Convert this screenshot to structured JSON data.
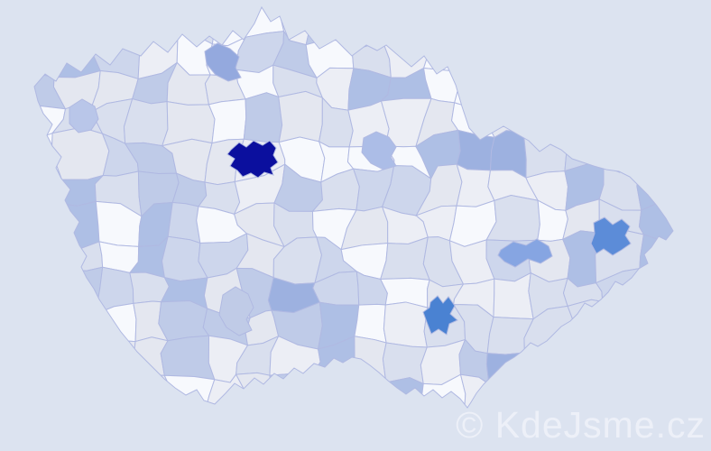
{
  "map": {
    "background": "#dce3f0",
    "region_border_color": "#b0b9e2",
    "palette": [
      "#f7f9fd",
      "#eceef5",
      "#e4e7f0",
      "#d9dfee",
      "#cdd6ec",
      "#bfcbe8",
      "#aebfe5",
      "#9db1e0"
    ],
    "palette_weights": [
      0.16,
      0.34,
      0.52,
      0.68,
      0.8,
      0.9,
      0.965,
      1.0
    ],
    "highlights": [
      {
        "id": "praha",
        "color": "#0b0f9e"
      },
      {
        "id": "brno",
        "color": "#4a82d2"
      },
      {
        "id": "ostrava",
        "color": "#5c8cd8"
      },
      {
        "id": "olomouc",
        "color": "#86a5e2"
      },
      {
        "id": "mlada-boleslav",
        "color": "#94a9de"
      },
      {
        "id": "hradec-kralove",
        "color": "#acbde7"
      },
      {
        "id": "karlovy-vary",
        "color": "#b9c6e9"
      },
      {
        "id": "ceske-budejovice",
        "color": "#c0cbe7"
      }
    ]
  },
  "watermark": {
    "text": "© KdeJsme.cz",
    "color": "#edf0f8"
  }
}
